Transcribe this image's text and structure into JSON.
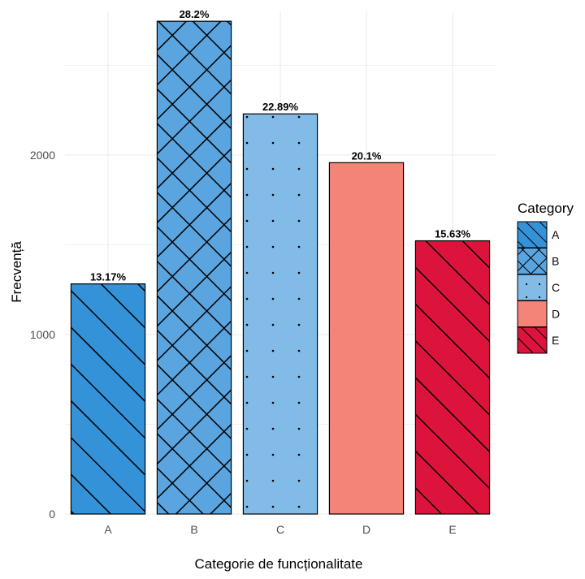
{
  "chart_data": {
    "type": "bar",
    "xlabel": "Categorie de funcționalitate",
    "ylabel": "Frecvență",
    "categories": [
      "A",
      "B",
      "C",
      "D",
      "E"
    ],
    "values": [
      1282,
      2745,
      2229,
      1957,
      1522
    ],
    "data_labels": [
      "13.17%",
      "28.2%",
      "22.89%",
      "20.1%",
      "15.63%"
    ],
    "ylim": [
      0,
      2800
    ],
    "yticks": [
      0,
      1000,
      2000
    ],
    "grid": true,
    "legend": {
      "title": "Category",
      "position": "right",
      "entries": [
        "A",
        "B",
        "C",
        "D",
        "E"
      ]
    },
    "colors": [
      "#3392d8",
      "#5aa4e0",
      "#82bce6",
      "#f58478",
      "#dc143c"
    ],
    "patterns": [
      "stripe",
      "crosshatch",
      "dots",
      "none",
      "stripe"
    ]
  }
}
